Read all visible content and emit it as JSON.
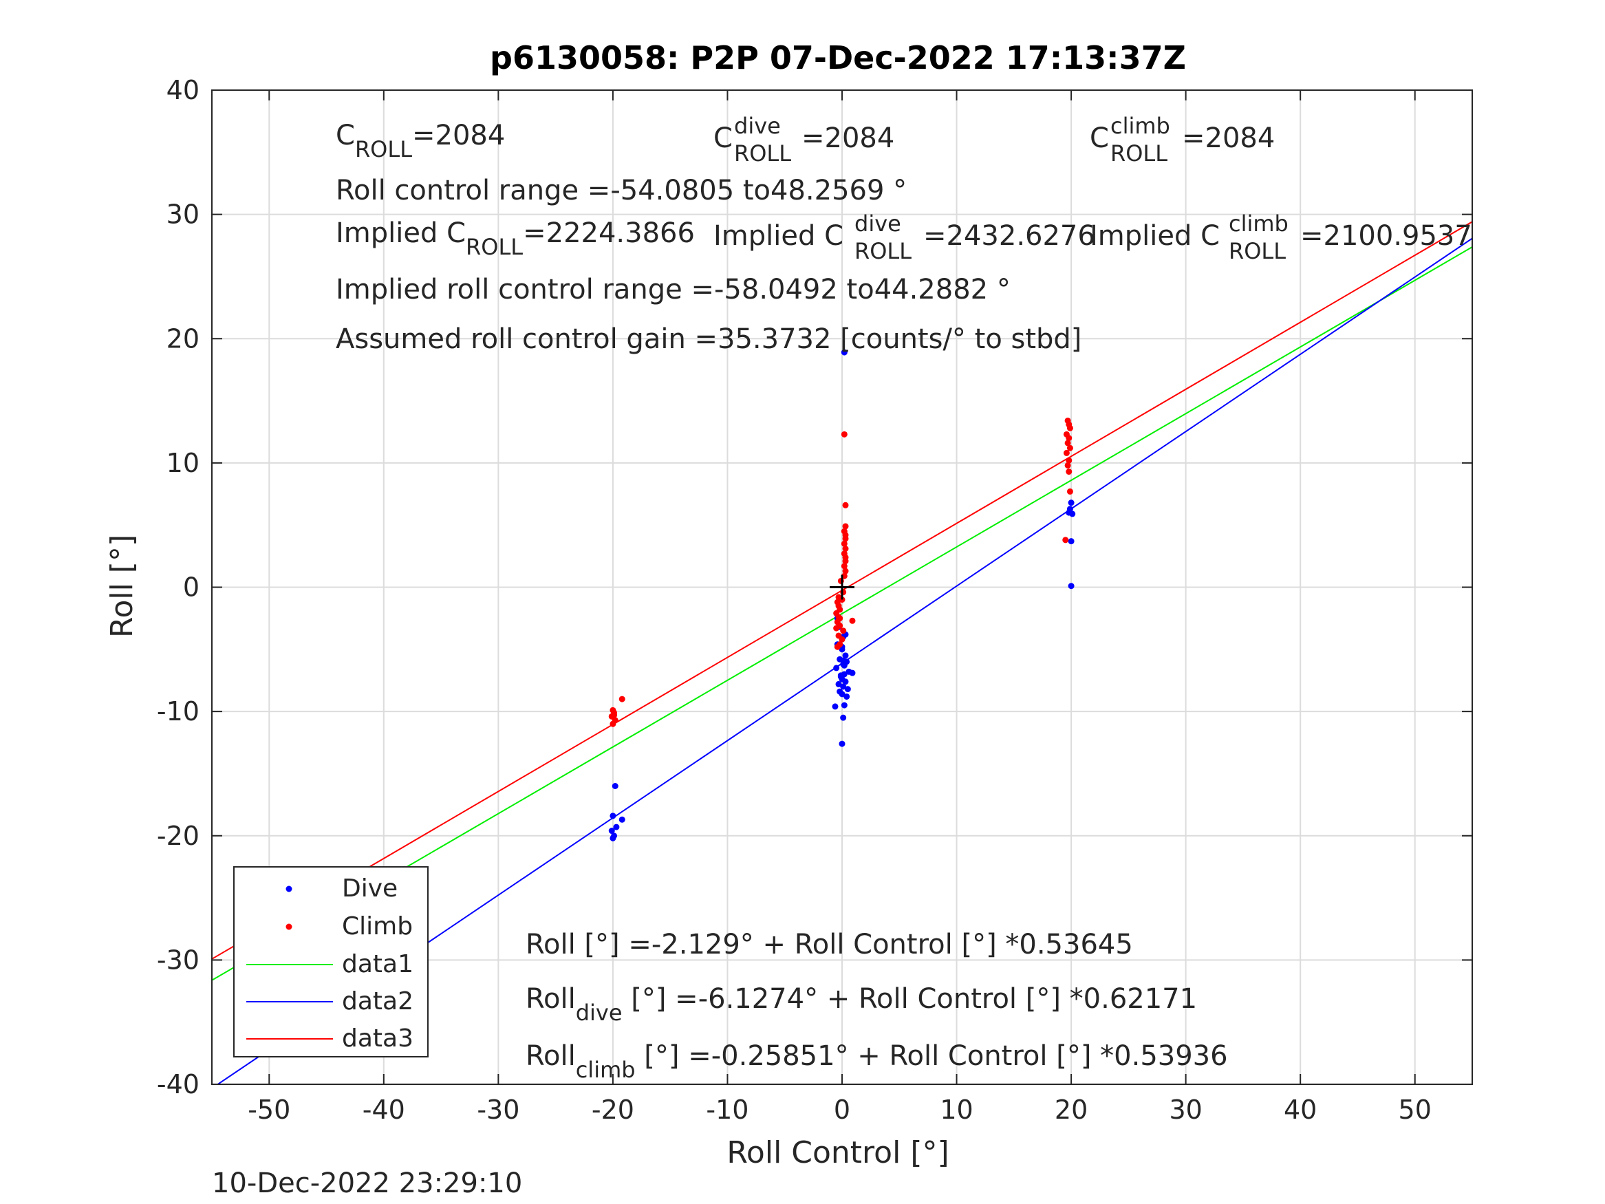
{
  "chart_data": {
    "type": "scatter",
    "title": "p6130058: P2P 07-Dec-2022 17:13:37Z",
    "xlabel": "Roll Control [°]",
    "ylabel": "Roll [°]",
    "xlim": [
      -55,
      55
    ],
    "ylim": [
      -40,
      40
    ],
    "xticks": [
      -50,
      -40,
      -30,
      -20,
      -10,
      0,
      10,
      20,
      30,
      40,
      50
    ],
    "yticks": [
      -40,
      -30,
      -20,
      -10,
      0,
      10,
      20,
      30,
      40
    ],
    "xtick_labels": [
      "-50",
      "-40",
      "-30",
      "-20",
      "-10",
      "0",
      "10",
      "20",
      "30",
      "40",
      "50"
    ],
    "ytick_labels": [
      "-40",
      "-30",
      "-20",
      "-10",
      "0",
      "10",
      "20",
      "30",
      "40"
    ],
    "grid": true,
    "legend_position": "bottom-left",
    "colors": {
      "dive": "#0000ff",
      "climb": "#ff0000",
      "data1": "#00ee00",
      "data2": "#0000ff",
      "data3": "#ff0000"
    },
    "series": [
      {
        "name": "Dive",
        "kind": "points",
        "color": "#0000ff",
        "x": [
          0.2,
          -0.3,
          0.1,
          -0.4,
          0.0,
          0.3,
          -0.2,
          0.4,
          0.1,
          -0.5,
          0.6,
          0.2,
          -0.1,
          0.0,
          0.3,
          -0.3,
          0.1,
          0.5,
          -0.2,
          0.0,
          0.4,
          0.9,
          0.2,
          -0.6,
          0.1,
          0.0,
          -0.4,
          0.3,
          0.2,
          -0.1,
          0.0,
          0.1,
          -19.8,
          -20.0,
          -19.7,
          -20.1,
          -19.9,
          -19.2,
          -20.0,
          20.0,
          19.8,
          20.1,
          19.9,
          20.0,
          20.0
        ],
        "y": [
          18.9,
          -3.2,
          -4.0,
          -4.6,
          -5.0,
          -5.5,
          -5.8,
          -6.0,
          -6.2,
          -6.5,
          -6.8,
          -7.0,
          -7.2,
          -7.4,
          -7.6,
          -7.8,
          -8.0,
          -8.2,
          -8.4,
          -8.6,
          -8.8,
          -6.9,
          -9.5,
          -9.6,
          -10.5,
          -12.6,
          -2.5,
          -3.8,
          -6.3,
          -7.1,
          -4.8,
          -5.9,
          -16.0,
          -18.4,
          -19.3,
          -19.6,
          -20.0,
          -18.7,
          -20.2,
          6.8,
          6.0,
          5.9,
          6.3,
          3.7,
          0.1
        ]
      },
      {
        "name": "Climb",
        "kind": "points",
        "color": "#ff0000",
        "x": [
          0.2,
          0.3,
          0.3,
          0.2,
          0.3,
          0.3,
          0.2,
          0.3,
          0.2,
          0.3,
          0.3,
          0.2,
          0.3,
          0.2,
          -0.3,
          -0.4,
          -0.3,
          -0.2,
          -0.5,
          -0.3,
          -0.4,
          -0.2,
          0.1,
          -0.3,
          0.0,
          -0.2,
          0.9,
          -0.4,
          0.1,
          -0.2,
          -0.5,
          -0.1,
          0.0,
          -20.0,
          -19.9,
          -20.1,
          -19.8,
          -20.0,
          -19.9,
          -19.2,
          19.7,
          19.8,
          19.9,
          19.6,
          19.8,
          19.7,
          19.9,
          19.6,
          19.8,
          19.7,
          19.8,
          19.9,
          19.5
        ],
        "y": [
          12.3,
          6.6,
          4.9,
          4.5,
          4.2,
          3.9,
          3.5,
          3.1,
          2.7,
          2.4,
          2.1,
          1.7,
          1.3,
          0.9,
          -0.8,
          -1.2,
          -1.5,
          -1.8,
          -2.1,
          -2.4,
          -2.8,
          -3.1,
          -3.5,
          -3.9,
          -4.2,
          -4.6,
          -2.7,
          -4.8,
          -0.4,
          -2.5,
          -3.3,
          0.5,
          -1.0,
          -9.9,
          -10.1,
          -10.4,
          -10.7,
          -11.0,
          -10.3,
          -9.0,
          13.4,
          13.1,
          12.8,
          12.3,
          12.0,
          11.6,
          11.2,
          10.8,
          10.2,
          9.8,
          9.3,
          7.7,
          3.8
        ]
      },
      {
        "name": "data1",
        "kind": "line",
        "color": "#00ee00",
        "x": [
          -55,
          55
        ],
        "y": [
          -31.63,
          27.38
        ]
      },
      {
        "name": "data2",
        "kind": "line",
        "color": "#0000ff",
        "x": [
          -55,
          55
        ],
        "y": [
          -40.32,
          28.07
        ]
      },
      {
        "name": "data3",
        "kind": "line",
        "color": "#ff0000",
        "x": [
          -55,
          55
        ],
        "y": [
          -29.92,
          29.41
        ]
      }
    ],
    "marker": {
      "label": "+",
      "x": 0,
      "y": 0
    },
    "annotations": {
      "c_roll": {
        "main": "C",
        "sub": "ROLL",
        "value": "=2084"
      },
      "c_roll_dive": {
        "main": "C",
        "sup": "dive",
        "sub": "ROLL",
        "value": "=2084"
      },
      "c_roll_climb": {
        "main": "C",
        "sup": "climb",
        "sub": "ROLL",
        "value": "=2084"
      },
      "roll_control_range": "Roll control range =-54.0805 to48.2569 °",
      "implied_c_roll": {
        "prefix": "Implied C",
        "sub": "ROLL",
        "value": "=2224.3866"
      },
      "implied_c_roll_dive": {
        "prefix": "Implied C",
        "sup": "dive",
        "sub": "ROLL",
        "value": "=2432.6276"
      },
      "implied_c_roll_climb": {
        "prefix": "Implied C",
        "sup": "climb",
        "sub": "ROLL",
        "value": "=2100.9537"
      },
      "implied_range": "Implied roll control range =-58.0492 to44.2882 °",
      "gain": "Assumed roll control gain =35.3732 [counts/° to stbd]",
      "fit_all": "Roll [°] =-2.129° + Roll Control [°] *0.53645",
      "fit_dive": {
        "main": "Roll",
        "sub": "dive",
        "rest": " [°] =-6.1274° + Roll Control [°] *0.62171"
      },
      "fit_climb": {
        "main": "Roll",
        "sub": "climb",
        "rest": " [°] =-0.25851° + Roll Control [°] *0.53936"
      }
    },
    "timestamp": "10-Dec-2022 23:29:10"
  }
}
